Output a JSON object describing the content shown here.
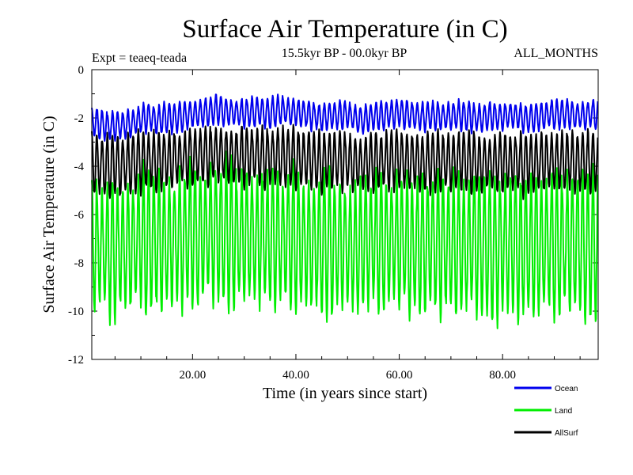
{
  "chart_data": {
    "type": "line",
    "title": "Surface Air Temperature (in C)",
    "subtitle": "15.5kyr BP - 00.0kyr BP",
    "expt_label": "Expt = teaeq-teada",
    "months_label": "ALL_MONTHS",
    "xlabel": "Time (in years since start)",
    "ylabel": "Surface Air Temperature (in C)",
    "xlim": [
      0.5,
      98.5
    ],
    "ylim": [
      -12,
      0
    ],
    "x_ticks": [
      20,
      40,
      60,
      80
    ],
    "x_tick_labels": [
      "20.00",
      "40.00",
      "60.00",
      "80.00"
    ],
    "y_ticks": [
      0,
      -2,
      -4,
      -6,
      -8,
      -10,
      -12
    ],
    "y_tick_labels": [
      "0",
      "-2",
      "-4",
      "-6",
      "-8",
      "-10",
      "-12"
    ],
    "samples_per_year": 12,
    "legend_position": "bottom-right",
    "series": [
      {
        "name": "Ocean",
        "color": "#0000ee",
        "annual_mean": [
          -2.2,
          -2.25,
          -2.3,
          -2.35,
          -2.3,
          -2.3,
          -2.3,
          -2.25,
          -2.15,
          -2.05,
          -2.0,
          -2.0,
          -2.1,
          -2.05,
          -2.0,
          -2.0,
          -2.0,
          -1.95,
          -1.9,
          -1.85,
          -1.8,
          -1.8,
          -1.75,
          -1.7,
          -1.65,
          -1.7,
          -1.75,
          -1.8,
          -1.8,
          -1.8,
          -1.8,
          -1.75,
          -1.75,
          -1.8,
          -1.8,
          -1.75,
          -1.65,
          -1.7,
          -1.75,
          -1.75,
          -1.8,
          -1.85,
          -1.9,
          -1.95,
          -2.0,
          -1.95,
          -1.9,
          -1.9,
          -1.85,
          -1.85,
          -1.95,
          -2.05,
          -2.1,
          -2.0,
          -1.95,
          -1.9,
          -1.9,
          -1.85,
          -1.85,
          -1.8,
          -1.85,
          -1.85,
          -1.9,
          -1.95,
          -1.95,
          -1.9,
          -1.9,
          -1.95,
          -1.95,
          -1.9,
          -1.9,
          -1.9,
          -1.95,
          -1.95,
          -2.0,
          -2.0,
          -1.95,
          -1.9,
          -1.95,
          -1.95,
          -1.9,
          -1.9,
          -1.95,
          -2.0,
          -2.05,
          -2.0,
          -1.95,
          -1.9,
          -1.85,
          -1.85,
          -1.85,
          -1.8,
          -1.85,
          -1.9,
          -1.9,
          -1.9,
          -1.85,
          -1.85
        ],
        "seasonal_amplitude": 0.55
      },
      {
        "name": "Land",
        "color": "#00ee00",
        "annual_mean": [
          -7.3,
          -7.35,
          -7.4,
          -7.5,
          -7.45,
          -7.4,
          -7.35,
          -7.3,
          -7.2,
          -7.15,
          -7.1,
          -7.1,
          -7.1,
          -7.15,
          -7.15,
          -7.1,
          -7.05,
          -7.0,
          -6.95,
          -6.9,
          -6.9,
          -6.85,
          -6.8,
          -6.8,
          -6.8,
          -6.85,
          -6.9,
          -6.95,
          -6.95,
          -6.9,
          -6.9,
          -6.9,
          -6.95,
          -7.0,
          -7.05,
          -7.0,
          -6.95,
          -7.0,
          -7.05,
          -7.1,
          -7.15,
          -7.2,
          -7.2,
          -7.25,
          -7.3,
          -7.25,
          -7.2,
          -7.2,
          -7.25,
          -7.3,
          -7.35,
          -7.3,
          -7.25,
          -7.2,
          -7.2,
          -7.15,
          -7.15,
          -7.1,
          -7.1,
          -7.15,
          -7.2,
          -7.25,
          -7.3,
          -7.3,
          -7.25,
          -7.2,
          -7.2,
          -7.2,
          -7.25,
          -7.3,
          -7.3,
          -7.25,
          -7.2,
          -7.2,
          -7.25,
          -7.3,
          -7.35,
          -7.4,
          -7.35,
          -7.3,
          -7.25,
          -7.25,
          -7.3,
          -7.35,
          -7.3,
          -7.25,
          -7.2,
          -7.2,
          -7.25,
          -7.3,
          -7.3,
          -7.25,
          -7.2,
          -7.2,
          -7.25,
          -7.3,
          -7.3,
          -7.25
        ],
        "seasonal_amplitude": 2.75
      },
      {
        "name": "AllSurf",
        "color": "#000000",
        "annual_mean": [
          -3.9,
          -3.95,
          -4.0,
          -4.05,
          -4.0,
          -4.0,
          -3.95,
          -3.9,
          -3.85,
          -3.8,
          -3.75,
          -3.75,
          -3.8,
          -3.8,
          -3.78,
          -3.75,
          -3.72,
          -3.7,
          -3.65,
          -3.6,
          -3.6,
          -3.58,
          -3.55,
          -3.52,
          -3.5,
          -3.52,
          -3.55,
          -3.6,
          -3.6,
          -3.58,
          -3.58,
          -3.58,
          -3.6,
          -3.62,
          -3.65,
          -3.62,
          -3.58,
          -3.6,
          -3.64,
          -3.66,
          -3.7,
          -3.74,
          -3.76,
          -3.8,
          -3.84,
          -3.8,
          -3.76,
          -3.76,
          -3.76,
          -3.8,
          -3.86,
          -3.9,
          -3.92,
          -3.86,
          -3.82,
          -3.78,
          -3.78,
          -3.74,
          -3.74,
          -3.72,
          -3.76,
          -3.78,
          -3.82,
          -3.86,
          -3.86,
          -3.82,
          -3.8,
          -3.82,
          -3.84,
          -3.82,
          -3.82,
          -3.8,
          -3.82,
          -3.84,
          -3.88,
          -3.9,
          -3.88,
          -3.84,
          -3.84,
          -3.84,
          -3.82,
          -3.82,
          -3.86,
          -3.9,
          -3.9,
          -3.86,
          -3.82,
          -3.8,
          -3.8,
          -3.82,
          -3.82,
          -3.78,
          -3.8,
          -3.84,
          -3.84,
          -3.84,
          -3.82,
          -3.8
        ],
        "seasonal_amplitude": 1.15
      }
    ]
  }
}
